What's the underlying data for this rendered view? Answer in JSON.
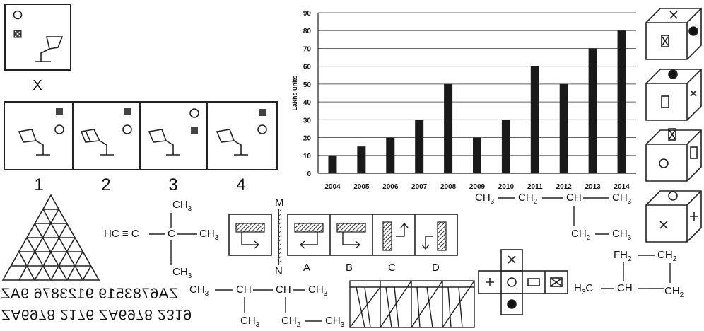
{
  "puzzle": {
    "question_label": "X",
    "option_labels": [
      "1",
      "2",
      "3",
      "4"
    ]
  },
  "chart_data": {
    "type": "bar",
    "categories": [
      "2004",
      "2005",
      "2006",
      "2007",
      "2008",
      "2009",
      "2010",
      "2011",
      "2012",
      "2013",
      "2014"
    ],
    "values": [
      10,
      15,
      20,
      30,
      50,
      20,
      30,
      60,
      50,
      70,
      80
    ],
    "ylabel": "Lakhs  units",
    "xlabel": "",
    "ylim": [
      0,
      90
    ],
    "yticks": [
      0,
      10,
      20,
      30,
      40,
      50,
      60,
      70,
      80,
      90
    ],
    "grid": true,
    "bar_color": "#1a1a1a"
  },
  "chem": {
    "hc_triple": "HC ≡ C",
    "c_center": "C",
    "ch3_top": "CH",
    "ch3_right": "CH",
    "ch3_bottom": "CH",
    "sub3": "3",
    "sub2": "2",
    "chain2_left": "CH",
    "chain2_ch1": "CH",
    "chain2_ch2": "CH",
    "chain2_right": "CH",
    "chain2_bottom1": "CH",
    "chain2_bottom2a": "CH",
    "chain2_bottom2b": "CH",
    "chain3_a": "CH",
    "chain3_b": "CH",
    "chain3_c": "CH",
    "chain3_d": "CH",
    "chain3_e": "CH",
    "chain3_f": "CH",
    "chain4_fh": "FH",
    "chain4_ch2top": "CH",
    "chain4_h3c": "H",
    "chain4_c3": "C",
    "chain4_ch": "CH",
    "chain4_ch2bot": "CH"
  },
  "mirror": {
    "m_label": "M",
    "n_label": "N",
    "option_labels": [
      "A",
      "B",
      "C",
      "D"
    ]
  },
  "mirror_text": {
    "line1": "ZA6783519 9123876 9AZ",
    "line2": "ZA6978 2176 ZA6978 2319"
  }
}
